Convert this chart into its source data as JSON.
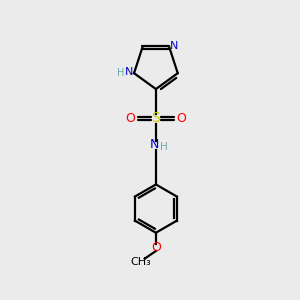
{
  "bg_color": "#ebebeb",
  "atom_colors": {
    "C": "#000000",
    "N": "#0000cd",
    "O": "#ff0000",
    "S": "#cccc00",
    "H": "#6fa8a8"
  },
  "bond_color": "#000000"
}
